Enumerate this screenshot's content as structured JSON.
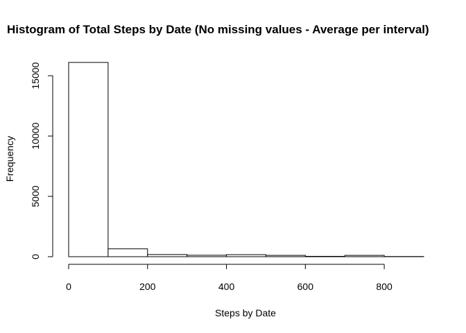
{
  "chart_data": {
    "type": "bar",
    "title": "Histogram of Total Steps by Date (No missing values - Average per interval)",
    "xlabel": "Steps by Date",
    "ylabel": "Frequency",
    "bins": [
      {
        "from": 0,
        "to": 100,
        "count": 16100
      },
      {
        "from": 100,
        "to": 200,
        "count": 650
      },
      {
        "from": 200,
        "to": 300,
        "count": 180
      },
      {
        "from": 300,
        "to": 400,
        "count": 120
      },
      {
        "from": 400,
        "to": 500,
        "count": 170
      },
      {
        "from": 500,
        "to": 600,
        "count": 110
      },
      {
        "from": 600,
        "to": 700,
        "count": 30
      },
      {
        "from": 700,
        "to": 800,
        "count": 110
      },
      {
        "from": 800,
        "to": 900,
        "count": 15
      }
    ],
    "xlim": [
      0,
      900
    ],
    "ylim": [
      0,
      16100
    ],
    "xticks": [
      0,
      200,
      400,
      600,
      800
    ],
    "yticks": [
      0,
      5000,
      10000,
      15000
    ],
    "grid": false,
    "colors": {
      "bar_fill": "#ffffff",
      "bar_stroke": "#000000"
    }
  }
}
